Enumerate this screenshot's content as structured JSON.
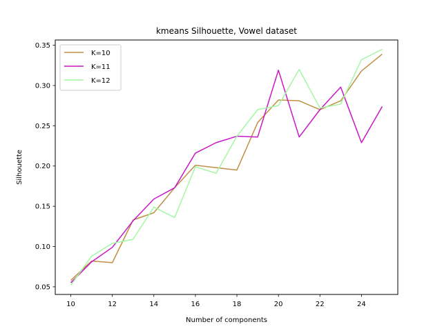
{
  "chart_data": {
    "type": "line",
    "title": "kmeans Silhouette, Vowel dataset",
    "xlabel": "Number of components",
    "ylabel": "Silhouette",
    "xlim": [
      9.25,
      25.75
    ],
    "ylim": [
      0.0405,
      0.3565
    ],
    "xticks": [
      10,
      12,
      14,
      16,
      18,
      20,
      22,
      24
    ],
    "xtick_labels": [
      "10",
      "12",
      "14",
      "16",
      "18",
      "20",
      "22",
      "24"
    ],
    "yticks": [
      0.05,
      0.1,
      0.15,
      0.2,
      0.25,
      0.3,
      0.35
    ],
    "ytick_labels": [
      "0.05",
      "0.10",
      "0.15",
      "0.20",
      "0.25",
      "0.30",
      "0.35"
    ],
    "grid": false,
    "legend_position": "upper-left",
    "x": [
      10,
      11,
      12,
      13,
      14,
      15,
      16,
      17,
      18,
      19,
      20,
      21,
      22,
      23,
      24,
      25
    ],
    "series": [
      {
        "name": "K=10",
        "color": "#c08f46",
        "values": [
          0.058,
          0.082,
          0.08,
          0.133,
          0.142,
          0.173,
          0.201,
          0.198,
          0.195,
          0.254,
          0.282,
          0.281,
          0.27,
          0.281,
          0.318,
          0.339
        ]
      },
      {
        "name": "K=11",
        "color": "#c816c8",
        "values": [
          0.055,
          0.081,
          0.099,
          0.132,
          0.159,
          0.173,
          0.216,
          0.229,
          0.237,
          0.236,
          0.319,
          0.236,
          0.27,
          0.298,
          0.229,
          0.274
        ]
      },
      {
        "name": "K=12",
        "color": "#a3f7a3",
        "values": [
          0.052,
          0.088,
          0.104,
          0.109,
          0.149,
          0.136,
          0.199,
          0.191,
          0.237,
          0.27,
          0.275,
          0.32,
          0.272,
          0.277,
          0.332,
          0.345
        ]
      }
    ]
  }
}
